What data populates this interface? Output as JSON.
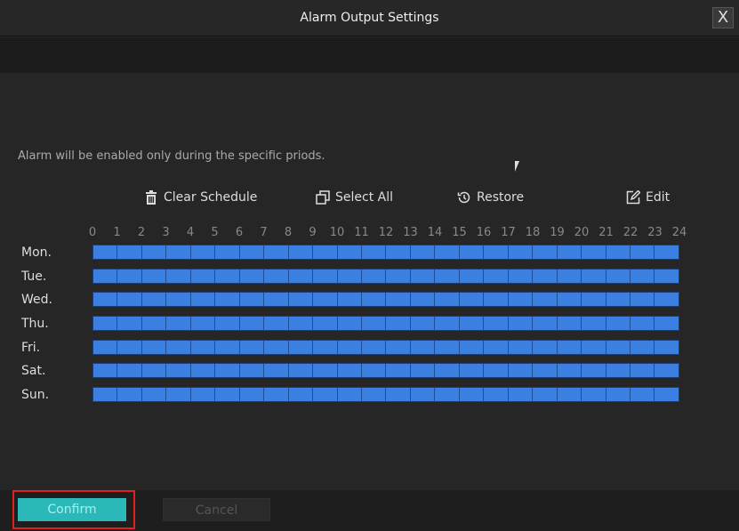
{
  "dialog": {
    "title": "Alarm Output Settings",
    "close_label": "X"
  },
  "note": "Alarm will be enabled only during the specific priods.",
  "toolbar": {
    "clear": "Clear Schedule",
    "select_all": "Select All",
    "restore": "Restore",
    "edit": "Edit"
  },
  "schedule": {
    "hours": [
      "0",
      "1",
      "2",
      "3",
      "4",
      "5",
      "6",
      "7",
      "8",
      "9",
      "10",
      "11",
      "12",
      "13",
      "14",
      "15",
      "16",
      "17",
      "18",
      "19",
      "20",
      "21",
      "22",
      "23",
      "24"
    ],
    "days": [
      "Mon.",
      "Tue.",
      "Wed.",
      "Thu.",
      "Fri.",
      "Sat.",
      "Sun."
    ],
    "enabled_fraction": 1.0,
    "fill_color": "#3b7fe0"
  },
  "footer": {
    "confirm": "Confirm",
    "cancel": "Cancel"
  }
}
